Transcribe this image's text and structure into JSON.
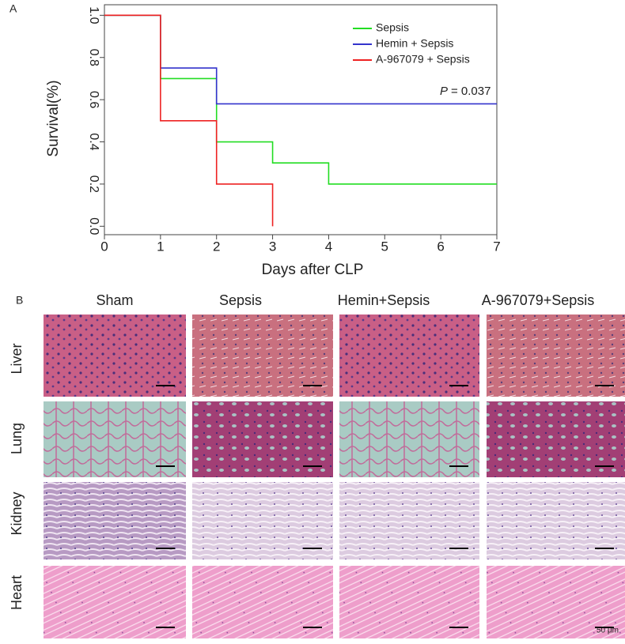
{
  "chart_data": {
    "type": "step",
    "panel_label": "A",
    "x_label": "Days after CLP",
    "y_label": "Survival(%)",
    "x": [
      0,
      1,
      2,
      3,
      4,
      5,
      6,
      7
    ],
    "series": [
      {
        "name": "Sepsis",
        "color": "#22dd22",
        "values": [
          1.0,
          0.7,
          0.4,
          0.3,
          0.2,
          0.2,
          0.2,
          0.2
        ]
      },
      {
        "name": "Hemin + Sepsis",
        "color": "#3333cc",
        "values": [
          1.0,
          0.75,
          0.58,
          0.58,
          0.58,
          0.58,
          0.58,
          0.58
        ]
      },
      {
        "name": "A-967079 + Sepsis",
        "color": "#ee2222",
        "values": [
          1.0,
          0.5,
          0.2,
          0.0,
          null,
          null,
          null,
          null
        ]
      }
    ],
    "xlim": [
      0,
      7
    ],
    "ylim": [
      -0.04,
      1.05
    ],
    "xticks": [
      0,
      1,
      2,
      3,
      4,
      5,
      6,
      7
    ],
    "yticks": [
      {
        "value": 0,
        "label": "0.0"
      },
      0.2,
      0.4,
      0.6,
      0.8,
      {
        "value": 1,
        "label": "1.0"
      }
    ],
    "legend": "upper right",
    "annotation": {
      "symbol": "P",
      "text": "= 0.037"
    }
  },
  "histology": {
    "panel_label": "B",
    "columns": [
      "Sham",
      "Sepsis",
      "Hemin+Sepsis",
      "A-967079+Sepsis"
    ],
    "rows": [
      "Liver",
      "Lung",
      "Kidney",
      "Heart"
    ],
    "scale_bar": "50 μm"
  }
}
